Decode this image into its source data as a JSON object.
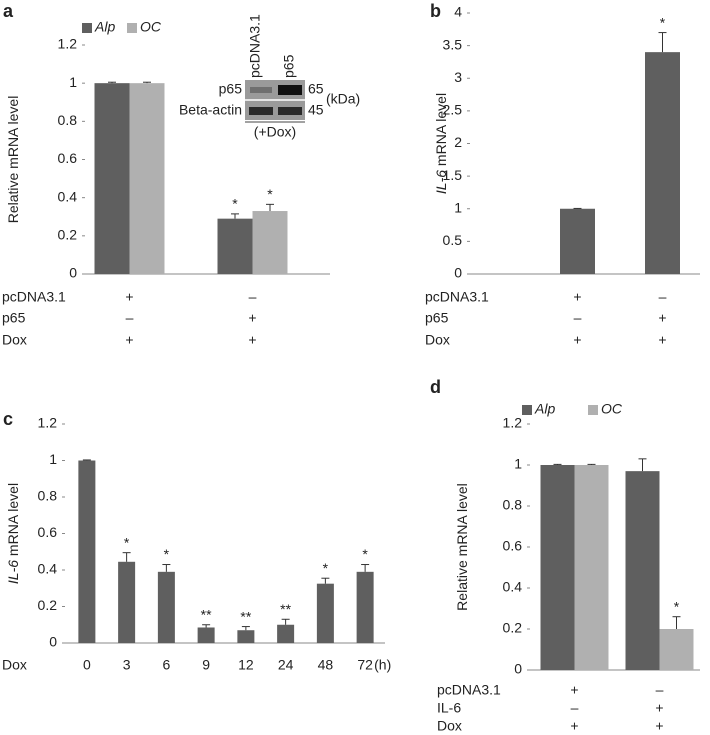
{
  "chart_data": [
    {
      "type": "bar",
      "panel": "a",
      "ylabel": "Relative mRNA level",
      "series": [
        {
          "name": "Alp",
          "color": "#5f5f5f",
          "values": [
            1,
            0.29
          ],
          "errors": [
            0.005,
            0.025
          ],
          "annotations": [
            null,
            "*"
          ]
        },
        {
          "name": "OC",
          "color": "#b0b0b0",
          "values": [
            1,
            0.33
          ],
          "errors": [
            0.005,
            0.035
          ],
          "annotations": [
            null,
            "*"
          ]
        }
      ],
      "ylim": [
        0,
        1.2
      ],
      "yticks": [
        0,
        0.2,
        0.4,
        0.6,
        0.8,
        1,
        1.2
      ],
      "conditions": [
        {
          "label": "pcDNA3.1",
          "marks": [
            "+",
            "–"
          ]
        },
        {
          "label": "p65",
          "marks": [
            "–",
            "+"
          ]
        },
        {
          "label": "Dox",
          "marks": [
            "+",
            "+"
          ]
        }
      ],
      "inset": {
        "lanes": [
          "pcDNA3.1",
          "p65"
        ],
        "rows": [
          "p65",
          "Beta-actin"
        ],
        "sizes": [
          "65",
          "45"
        ],
        "unit": "(kDa)",
        "note": "(+Dox)"
      }
    },
    {
      "type": "bar",
      "panel": "b",
      "ylabel_gene": "IL-6",
      "ylabel": "mRNA level",
      "color": "#5f5f5f",
      "values": [
        1,
        3.4
      ],
      "errors": [
        0.005,
        0.3
      ],
      "annotations": [
        null,
        "*"
      ],
      "ylim": [
        0,
        4
      ],
      "yticks": [
        0,
        0.5,
        1,
        1.5,
        2,
        2.5,
        3,
        3.5,
        4
      ],
      "conditions": [
        {
          "label": "pcDNA3.1",
          "marks": [
            "+",
            "–"
          ]
        },
        {
          "label": "p65",
          "marks": [
            "–",
            "+"
          ]
        },
        {
          "label": "Dox",
          "marks": [
            "+",
            "+"
          ]
        }
      ]
    },
    {
      "type": "bar",
      "panel": "c",
      "ylabel_gene": "IL-6",
      "ylabel": "mRNA level",
      "color": "#5f5f5f",
      "xlabel": "Dox",
      "xunit": "(h)",
      "categories": [
        "0",
        "3",
        "6",
        "9",
        "12",
        "24",
        "48",
        "72"
      ],
      "values": [
        1,
        0.445,
        0.39,
        0.085,
        0.07,
        0.1,
        0.325,
        0.39
      ],
      "errors": [
        0.003,
        0.05,
        0.04,
        0.015,
        0.02,
        0.03,
        0.03,
        0.04
      ],
      "annotations": [
        null,
        "*",
        "*",
        "**",
        "**",
        "**",
        "*",
        "*"
      ],
      "ylim": [
        0,
        1.2
      ],
      "yticks": [
        0,
        0.2,
        0.4,
        0.6,
        0.8,
        1,
        1.2
      ]
    },
    {
      "type": "bar",
      "panel": "d",
      "ylabel": "Relative mRNA level",
      "series": [
        {
          "name": "Alp",
          "color": "#5f5f5f",
          "values": [
            1,
            0.97
          ],
          "errors": [
            0.003,
            0.06
          ],
          "annotations": [
            null,
            null
          ]
        },
        {
          "name": "OC",
          "color": "#b0b0b0",
          "values": [
            1,
            0.2
          ],
          "errors": [
            0.003,
            0.06
          ],
          "annotations": [
            null,
            "*"
          ]
        }
      ],
      "ylim": [
        0,
        1.2
      ],
      "yticks": [
        0,
        0.2,
        0.4,
        0.6,
        0.8,
        1,
        1.2
      ],
      "conditions": [
        {
          "label": "pcDNA3.1",
          "marks": [
            "+",
            "–"
          ]
        },
        {
          "label": "IL-6",
          "marks": [
            "–",
            "+"
          ]
        },
        {
          "label": "Dox",
          "marks": [
            "+",
            "+"
          ]
        }
      ]
    }
  ]
}
